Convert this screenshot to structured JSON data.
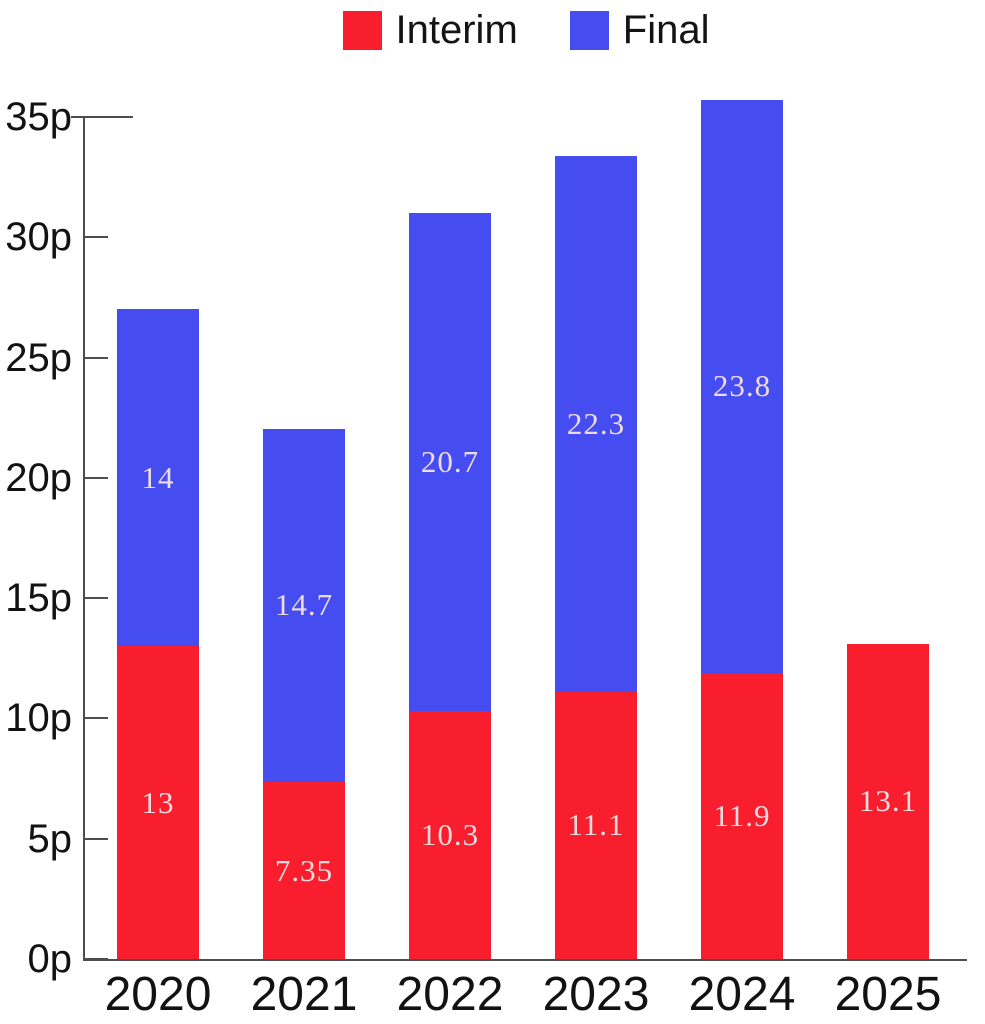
{
  "chart_data": {
    "type": "bar",
    "stacked": true,
    "title": "",
    "xlabel": "",
    "ylabel": "",
    "unit_suffix": "p",
    "categories": [
      "2020",
      "2021",
      "2022",
      "2023",
      "2024",
      "2025"
    ],
    "series": [
      {
        "name": "Interim",
        "color": "#f91e2e",
        "values": [
          13,
          7.35,
          10.3,
          11.1,
          11.9,
          13.1
        ],
        "labels": [
          "13",
          "7.35",
          "10.3",
          "11.1",
          "11.9",
          "13.1"
        ]
      },
      {
        "name": "Final",
        "color": "#454df1",
        "values": [
          14,
          14.7,
          20.7,
          22.3,
          23.8,
          null
        ],
        "labels": [
          "14",
          "14.7",
          "20.7",
          "22.3",
          "23.8",
          ""
        ]
      }
    ],
    "ylim": [
      0,
      35
    ],
    "y_ticks": [
      {
        "v": 0,
        "label": "0p"
      },
      {
        "v": 5,
        "label": "5p"
      },
      {
        "v": 10,
        "label": "10p"
      },
      {
        "v": 15,
        "label": "15p"
      },
      {
        "v": 20,
        "label": "20p"
      },
      {
        "v": 25,
        "label": "25p"
      },
      {
        "v": 30,
        "label": "30p"
      },
      {
        "v": 35,
        "label": "35p"
      }
    ],
    "legend_position": "top",
    "grid": false,
    "axis_color": "#4d4d4d",
    "label_text_color": "#eddbdf"
  }
}
